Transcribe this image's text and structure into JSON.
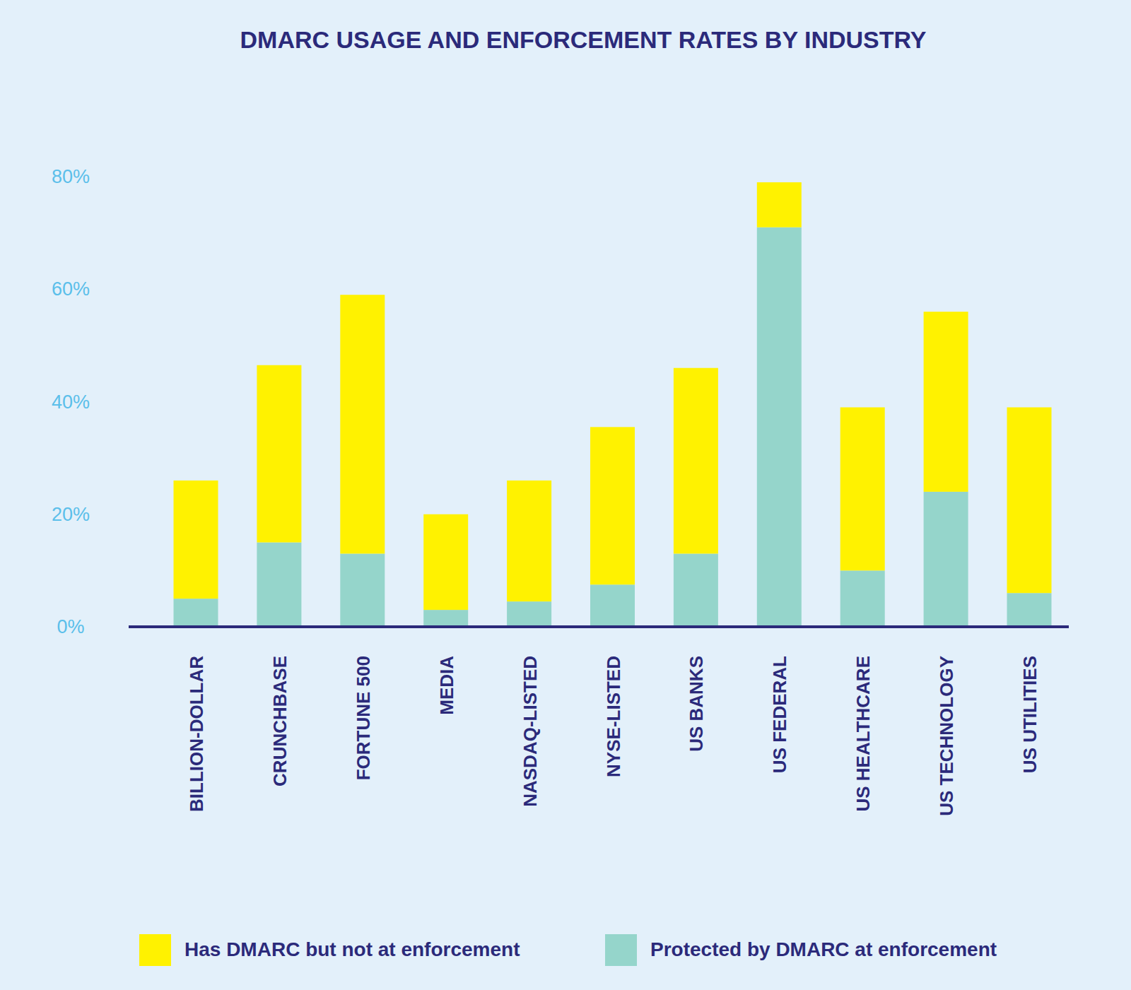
{
  "chart_data": {
    "type": "bar",
    "title": "DMARC USAGE AND ENFORCEMENT RATES BY INDUSTRY",
    "categories": [
      "BILLION-DOLLAR",
      "CRUNCHBASE",
      "FORTUNE 500",
      "MEDIA",
      "NASDAQ-LISTED",
      "NYSE-LISTED",
      "US BANKS",
      "US FEDERAL",
      "US HEALTHCARE",
      "US TECHNOLOGY",
      "US UTILITIES"
    ],
    "series": [
      {
        "name": "Protected by DMARC at enforcement",
        "color": "#95d5cb",
        "values": [
          5,
          15,
          13,
          3,
          4.5,
          7.5,
          13,
          71,
          10,
          24,
          6
        ]
      },
      {
        "name": "Has DMARC but not at enforcement",
        "color": "#fff200",
        "values": [
          21,
          31.5,
          46,
          17,
          21.5,
          28,
          33,
          8,
          29,
          32,
          33
        ]
      }
    ],
    "stacked": true,
    "ylim": [
      0,
      80
    ],
    "yticks": [
      {
        "value": 0,
        "label": "0%"
      },
      {
        "value": 20,
        "label": "20%"
      },
      {
        "value": 40,
        "label": "40%"
      },
      {
        "value": 60,
        "label": "60%"
      },
      {
        "value": 80,
        "label": "80%"
      }
    ],
    "grid": false,
    "legend": "bottom"
  }
}
